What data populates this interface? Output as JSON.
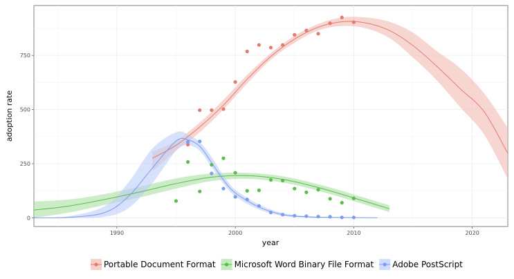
{
  "chart_data": {
    "type": "scatter",
    "xlabel": "year",
    "ylabel": "adoption rate",
    "xlim": [
      1983,
      2023
    ],
    "ylim": [
      -40,
      980
    ],
    "x_ticks": [
      1990,
      2000,
      2010,
      2020
    ],
    "y_ticks": [
      0,
      250,
      500,
      750
    ],
    "grid": true,
    "legend_position": "bottom",
    "series": [
      {
        "name": "Portable Document Format",
        "color": "#E07B6E",
        "ribbon_color": "#F2BBB4",
        "points": [
          [
            1996,
            338
          ],
          [
            1997,
            497
          ],
          [
            1998,
            497
          ],
          [
            1999,
            502
          ],
          [
            2000,
            627
          ],
          [
            2001,
            768
          ],
          [
            2002,
            798
          ],
          [
            2003,
            786
          ],
          [
            2004,
            798
          ],
          [
            2005,
            845
          ],
          [
            2006,
            865
          ],
          [
            2007,
            850
          ],
          [
            2008,
            898
          ],
          [
            2009,
            925
          ],
          [
            2010,
            903
          ]
        ],
        "fit": [
          [
            1993,
            275
          ],
          [
            1995,
            335
          ],
          [
            1997,
            420
          ],
          [
            1999,
            520
          ],
          [
            2001,
            640
          ],
          [
            2003,
            745
          ],
          [
            2005,
            825
          ],
          [
            2007,
            880
          ],
          [
            2009,
            905
          ],
          [
            2011,
            900
          ],
          [
            2013,
            865
          ],
          [
            2015,
            795
          ],
          [
            2017,
            700
          ],
          [
            2019,
            595
          ],
          [
            2021,
            490
          ],
          [
            2023,
            298
          ]
        ],
        "ribbon_upper": [
          [
            1993,
            305
          ],
          [
            1995,
            355
          ],
          [
            1997,
            440
          ],
          [
            1999,
            545
          ],
          [
            2001,
            660
          ],
          [
            2003,
            760
          ],
          [
            2005,
            840
          ],
          [
            2007,
            895
          ],
          [
            2009,
            925
          ],
          [
            2011,
            925
          ],
          [
            2013,
            905
          ],
          [
            2015,
            855
          ],
          [
            2017,
            770
          ],
          [
            2019,
            690
          ],
          [
            2021,
            575
          ],
          [
            2023,
            415
          ]
        ],
        "ribbon_lower": [
          [
            1993,
            215
          ],
          [
            1995,
            310
          ],
          [
            1997,
            395
          ],
          [
            1999,
            500
          ],
          [
            2001,
            620
          ],
          [
            2003,
            730
          ],
          [
            2005,
            808
          ],
          [
            2007,
            865
          ],
          [
            2009,
            885
          ],
          [
            2011,
            875
          ],
          [
            2013,
            830
          ],
          [
            2015,
            740
          ],
          [
            2017,
            635
          ],
          [
            2019,
            510
          ],
          [
            2021,
            385
          ],
          [
            2023,
            180
          ]
        ]
      },
      {
        "name": "Microsoft Word Binary File Format",
        "color": "#5DBA4E",
        "ribbon_color": "#A9DFA0",
        "points": [
          [
            1995,
            78
          ],
          [
            1996,
            258
          ],
          [
            1997,
            122
          ],
          [
            1998,
            245
          ],
          [
            1999,
            275
          ],
          [
            2000,
            208
          ],
          [
            2001,
            125
          ],
          [
            2002,
            127
          ],
          [
            2003,
            175
          ],
          [
            2004,
            172
          ],
          [
            2005,
            135
          ],
          [
            2006,
            118
          ],
          [
            2007,
            130
          ],
          [
            2008,
            88
          ],
          [
            2009,
            70
          ],
          [
            2010,
            90
          ]
        ],
        "fit": [
          [
            1983,
            36
          ],
          [
            1986,
            55
          ],
          [
            1989,
            85
          ],
          [
            1992,
            120
          ],
          [
            1995,
            158
          ],
          [
            1998,
            188
          ],
          [
            2001,
            195
          ],
          [
            2004,
            178
          ],
          [
            2007,
            140
          ],
          [
            2010,
            92
          ],
          [
            2013,
            42
          ]
        ],
        "ribbon_upper": [
          [
            1983,
            75
          ],
          [
            1986,
            85
          ],
          [
            1989,
            110
          ],
          [
            1992,
            145
          ],
          [
            1995,
            182
          ],
          [
            1998,
            205
          ],
          [
            2001,
            208
          ],
          [
            2004,
            192
          ],
          [
            2007,
            155
          ],
          [
            2010,
            108
          ],
          [
            2013,
            58
          ]
        ],
        "ribbon_lower": [
          [
            1983,
            0
          ],
          [
            1986,
            25
          ],
          [
            1989,
            60
          ],
          [
            1992,
            95
          ],
          [
            1995,
            135
          ],
          [
            1998,
            170
          ],
          [
            2001,
            180
          ],
          [
            2004,
            163
          ],
          [
            2007,
            125
          ],
          [
            2010,
            77
          ],
          [
            2013,
            26
          ]
        ]
      },
      {
        "name": "Adobe PostScript",
        "color": "#7B9CF0",
        "ribbon_color": "#BDCDF8",
        "points": [
          [
            1996,
            350
          ],
          [
            1997,
            353
          ],
          [
            1998,
            205
          ],
          [
            1999,
            135
          ],
          [
            2000,
            97
          ],
          [
            2001,
            85
          ],
          [
            2002,
            55
          ],
          [
            2003,
            25
          ],
          [
            2004,
            15
          ],
          [
            2005,
            10
          ],
          [
            2006,
            8
          ],
          [
            2007,
            6
          ],
          [
            2008,
            5
          ],
          [
            2009,
            2
          ],
          [
            2010,
            2
          ]
        ],
        "fit": [
          [
            1983,
            0
          ],
          [
            1986,
            2
          ],
          [
            1989,
            25
          ],
          [
            1991,
            100
          ],
          [
            1993,
            230
          ],
          [
            1995,
            355
          ],
          [
            1996,
            360
          ],
          [
            1997,
            330
          ],
          [
            1998,
            255
          ],
          [
            1999,
            175
          ],
          [
            2000,
            115
          ],
          [
            2002,
            50
          ],
          [
            2004,
            15
          ],
          [
            2006,
            5
          ],
          [
            2008,
            2
          ],
          [
            2010,
            1
          ],
          [
            2012,
            0
          ]
        ],
        "ribbon_upper": [
          [
            1983,
            0
          ],
          [
            1986,
            8
          ],
          [
            1989,
            55
          ],
          [
            1991,
            165
          ],
          [
            1993,
            320
          ],
          [
            1995,
            395
          ],
          [
            1996,
            385
          ],
          [
            1997,
            350
          ],
          [
            1998,
            280
          ],
          [
            1999,
            195
          ],
          [
            2000,
            130
          ],
          [
            2002,
            62
          ],
          [
            2004,
            22
          ],
          [
            2006,
            9
          ],
          [
            2008,
            4
          ],
          [
            2010,
            2
          ],
          [
            2012,
            1
          ]
        ],
        "ribbon_lower": [
          [
            1983,
            0
          ],
          [
            1986,
            0
          ],
          [
            1989,
            5
          ],
          [
            1991,
            45
          ],
          [
            1993,
            160
          ],
          [
            1995,
            310
          ],
          [
            1996,
            335
          ],
          [
            1997,
            310
          ],
          [
            1998,
            235
          ],
          [
            1999,
            158
          ],
          [
            2000,
            100
          ],
          [
            2002,
            38
          ],
          [
            2004,
            9
          ],
          [
            2006,
            1
          ],
          [
            2008,
            0
          ],
          [
            2010,
            0
          ],
          [
            2012,
            0
          ]
        ]
      }
    ]
  }
}
